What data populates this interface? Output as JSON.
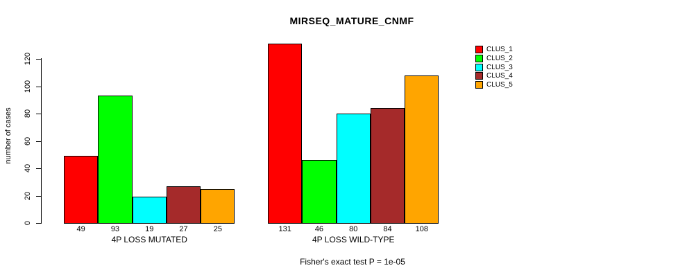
{
  "chart_data": {
    "type": "bar",
    "title": "MIRSEQ_MATURE_CNMF",
    "ylabel": "number of cases",
    "xlabel": "",
    "ylim": [
      0,
      131
    ],
    "yticks": [
      0,
      20,
      40,
      60,
      80,
      100,
      120
    ],
    "grid": false,
    "legend_position": "right",
    "series": [
      {
        "name": "CLUS_1",
        "color": "#FF0000"
      },
      {
        "name": "CLUS_2",
        "color": "#00FF00"
      },
      {
        "name": "CLUS_3",
        "color": "#00FFFF"
      },
      {
        "name": "CLUS_4",
        "color": "#A52A2A"
      },
      {
        "name": "CLUS_5",
        "color": "#FFA500"
      }
    ],
    "groups": [
      {
        "label": "4P LOSS MUTATED",
        "values": [
          49,
          93,
          19,
          27,
          25
        ]
      },
      {
        "label": "4P LOSS WILD-TYPE",
        "values": [
          131,
          46,
          80,
          84,
          108
        ]
      }
    ],
    "note": "Fisher's exact test P = 1e-05",
    "colors": {
      "axis": "#000000",
      "text": "#000000",
      "background": "#FFFFFF"
    }
  }
}
